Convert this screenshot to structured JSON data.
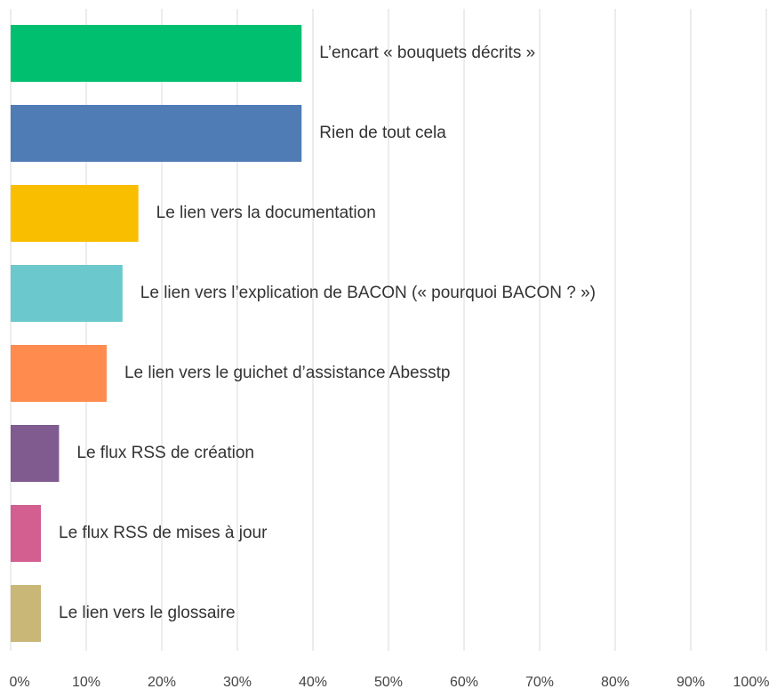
{
  "chart_data": {
    "type": "barh",
    "categories": [
      "L’encart « bouquets décrits »",
      "Rien de tout cela",
      "Le lien vers la documentation",
      "Le lien vers l’explication de BACON (« pourquoi BACON ? »)",
      "Le lien vers le guichet d’assistance Abesstp",
      "Le flux RSS de création",
      "Le flux RSS de mises à jour",
      "Le lien vers le glossaire"
    ],
    "values": [
      38.5,
      38.5,
      16.9,
      14.8,
      12.7,
      6.4,
      4,
      4
    ],
    "colors": [
      "#00bf6f",
      "#507cb6",
      "#f9be00",
      "#6bc8cd",
      "#ff8b4f",
      "#7f5b8f",
      "#d25f90",
      "#c9b777"
    ],
    "xlim": [
      0,
      100
    ],
    "xticks": [
      {
        "value": 0,
        "label": "0%"
      },
      {
        "value": 10,
        "label": "10%"
      },
      {
        "value": 20,
        "label": "20%"
      },
      {
        "value": 30,
        "label": "30%"
      },
      {
        "value": 40,
        "label": "40%"
      },
      {
        "value": 50,
        "label": "50%"
      },
      {
        "value": 60,
        "label": "60%"
      },
      {
        "value": 70,
        "label": "70%"
      },
      {
        "value": 80,
        "label": "80%"
      },
      {
        "value": 90,
        "label": "90%"
      },
      {
        "value": 100,
        "label": "100%"
      }
    ],
    "grid": true
  }
}
